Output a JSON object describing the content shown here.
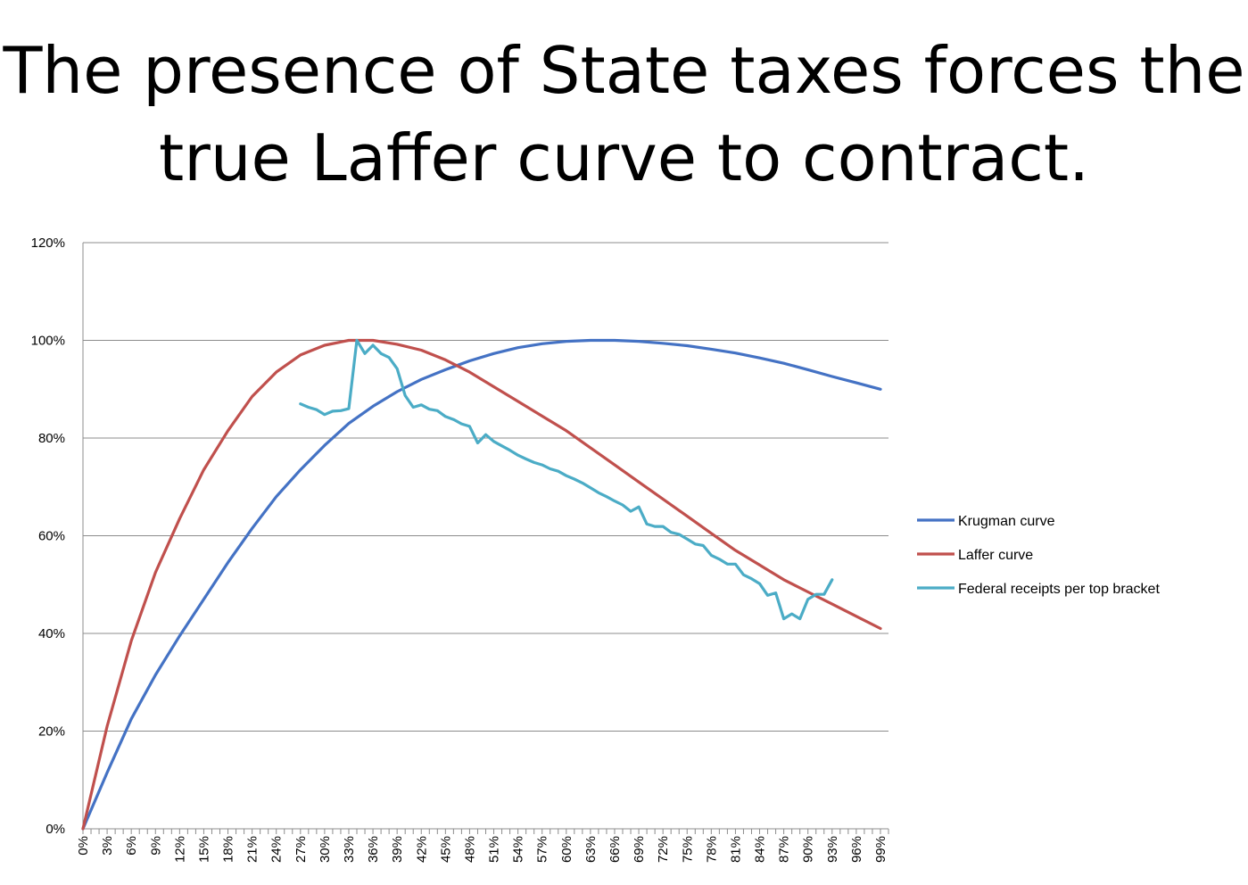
{
  "slide": {
    "title_line1": "The presence of State taxes forces the",
    "title_line2": "true Laffer curve to contract."
  },
  "colors": {
    "krugman": "#4472C4",
    "laffer": "#C0504D",
    "federal": "#4BACC6",
    "grid": "#8c8c8c"
  },
  "chart_data": {
    "type": "line",
    "title": "",
    "xlabel": "",
    "ylabel": "",
    "ylim": [
      0,
      120
    ],
    "yticks": [
      "0%",
      "20%",
      "40%",
      "60%",
      "80%",
      "100%",
      "120%"
    ],
    "xticks": [
      "0%",
      "3%",
      "6%",
      "9%",
      "12%",
      "15%",
      "18%",
      "21%",
      "24%",
      "27%",
      "30%",
      "33%",
      "36%",
      "39%",
      "42%",
      "45%",
      "48%",
      "51%",
      "54%",
      "57%",
      "60%",
      "63%",
      "66%",
      "69%",
      "72%",
      "75%",
      "78%",
      "81%",
      "84%",
      "87%",
      "90%",
      "93%",
      "96%",
      "99%"
    ],
    "grid": "horizontal",
    "legend_position": "right",
    "series": [
      {
        "name": "Krugman curve",
        "color": "#4472C4",
        "x": [
          0,
          3,
          6,
          9,
          12,
          15,
          18,
          21,
          24,
          27,
          30,
          33,
          36,
          39,
          42,
          45,
          48,
          51,
          54,
          57,
          60,
          63,
          66,
          69,
          72,
          75,
          78,
          81,
          84,
          87,
          90,
          93,
          96,
          99
        ],
        "y": [
          0,
          11.5,
          22.5,
          31.5,
          39.5,
          47,
          54.5,
          61.5,
          68,
          73.5,
          78.5,
          83,
          86.5,
          89.5,
          92,
          94,
          95.8,
          97.3,
          98.5,
          99.3,
          99.8,
          100,
          100,
          99.8,
          99.4,
          98.9,
          98.2,
          97.4,
          96.4,
          95.3,
          94,
          92.6,
          91.3,
          90
        ]
      },
      {
        "name": "Laffer curve",
        "color": "#C0504D",
        "x": [
          0,
          3,
          6,
          9,
          12,
          15,
          18,
          21,
          24,
          27,
          30,
          33,
          36,
          39,
          42,
          45,
          48,
          51,
          54,
          57,
          60,
          63,
          66,
          69,
          72,
          75,
          78,
          81,
          84,
          87,
          90,
          93,
          96,
          99
        ],
        "y": [
          0,
          21,
          38.5,
          52.5,
          63.5,
          73.5,
          81.5,
          88.5,
          93.5,
          97,
          99,
          100,
          100,
          99.2,
          98,
          96,
          93.5,
          90.5,
          87.5,
          84.5,
          81.5,
          78,
          74.5,
          71,
          67.5,
          64,
          60.5,
          57,
          54,
          51,
          48.5,
          46,
          43.5,
          41
        ]
      },
      {
        "name": "Federal receipts per top bracket",
        "color": "#4BACC6",
        "x": [
          27,
          28,
          29,
          30,
          31,
          32,
          33,
          34,
          35,
          36,
          37,
          38,
          39,
          40,
          41,
          42,
          43,
          44,
          45,
          46,
          47,
          48,
          49,
          50,
          51,
          52,
          53,
          54,
          55,
          56,
          57,
          58,
          59,
          60,
          61,
          62,
          63,
          64,
          65,
          66,
          67,
          68,
          69,
          70,
          71,
          72,
          73,
          74,
          75,
          76,
          77,
          78,
          79,
          80,
          81,
          82,
          83,
          84,
          85,
          86,
          87,
          88,
          89,
          90,
          91,
          92,
          93
        ],
        "y": [
          87,
          86.3,
          85.8,
          84.8,
          85.5,
          85.6,
          86,
          100,
          97.3,
          99,
          97.3,
          96.5,
          94.2,
          88.7,
          86.3,
          86.8,
          85.9,
          85.6,
          84.4,
          83.8,
          82.9,
          82.4,
          79,
          80.7,
          79.3,
          78.4,
          77.5,
          76.5,
          75.7,
          75,
          74.5,
          73.7,
          73.2,
          72.3,
          71.6,
          70.8,
          69.8,
          68.8,
          68,
          67.1,
          66.3,
          65,
          65.9,
          62.4,
          61.9,
          61.9,
          60.7,
          60.3,
          59.3,
          58.3,
          58,
          56,
          55.2,
          54.2,
          54.2,
          52,
          51.2,
          50.2,
          47.8,
          48.3,
          43,
          44,
          43,
          47,
          48,
          48,
          51
        ]
      }
    ]
  }
}
